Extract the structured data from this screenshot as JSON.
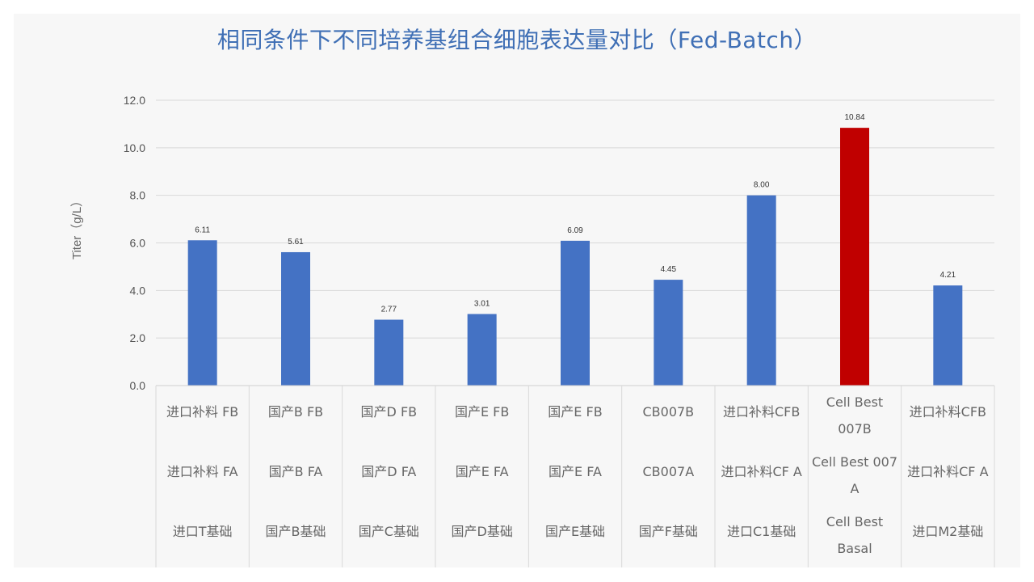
{
  "chart_data": {
    "type": "bar",
    "title": "相同条件下不同培养基组合细胞表达量对比（Fed-Batch）",
    "ylabel": "Titer（g/L）",
    "ylim": [
      0,
      12
    ],
    "yticks": [
      "0.0",
      "2.0",
      "4.0",
      "6.0",
      "8.0",
      "10.0",
      "12.0"
    ],
    "grid": true,
    "legend": "none",
    "categories": [
      [
        "进口补料 FB",
        "进口补料 FA",
        "进口T基础"
      ],
      [
        "国产B FB",
        "国产B FA",
        "国产B基础"
      ],
      [
        "国产D FB",
        "国产D FA",
        "国产C基础"
      ],
      [
        "国产E FB",
        "国产E FA",
        "国产D基础"
      ],
      [
        "国产E FB",
        "国产E FA",
        "国产E基础"
      ],
      [
        "CB007B",
        "CB007A",
        "国产F基础"
      ],
      [
        "进口补料CFB",
        "进口补料CF A",
        "进口C1基础"
      ],
      [
        "Cell Best 007B",
        "Cell Best 007 A",
        "Cell Best Basal"
      ],
      [
        "进口补料CFB",
        "进口补料CF A",
        "进口M2基础"
      ]
    ],
    "values": [
      6.11,
      5.61,
      2.77,
      3.01,
      6.09,
      4.45,
      8.0,
      10.84,
      4.21
    ],
    "data_labels": [
      "6.11",
      "5.61",
      "2.77",
      "3.01",
      "6.09",
      "4.45",
      "8.00",
      "10.84",
      "4.21"
    ],
    "colors": {
      "default": "#4472c4",
      "highlight": "#c00000",
      "highlight_index": 7
    }
  }
}
